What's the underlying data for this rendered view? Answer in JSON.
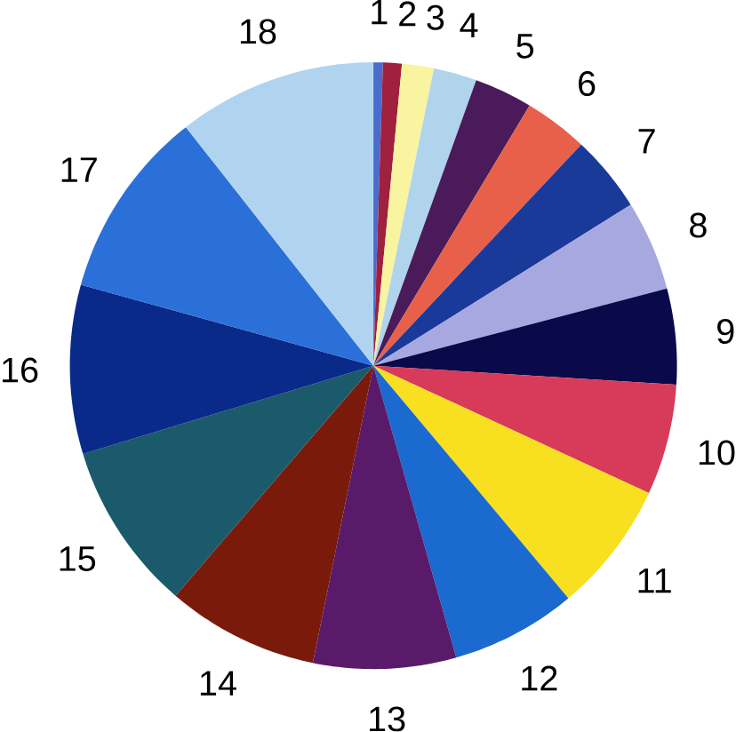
{
  "chart_data": {
    "type": "pie",
    "categories": [
      "1",
      "2",
      "3",
      "4",
      "5",
      "6",
      "7",
      "8",
      "9",
      "10",
      "11",
      "12",
      "13",
      "14",
      "15",
      "16",
      "17",
      "18"
    ],
    "values": [
      0.5,
      1.0,
      1.7,
      2.3,
      3.1,
      3.4,
      4.1,
      4.8,
      5.1,
      5.9,
      7.0,
      6.7,
      7.6,
      8.1,
      9.0,
      9.0,
      10.1,
      10.6
    ],
    "colors": [
      "#4a6ccc",
      "#a02040",
      "#f8f4a0",
      "#b0d4ec",
      "#4a1a5a",
      "#e8604a",
      "#1a3a9a",
      "#a8a8e0",
      "#0a0a4a",
      "#d83a5a",
      "#f8e020",
      "#1a6ad0",
      "#5a1a6a",
      "#7a1a0a",
      "#1a5a6a",
      "#0a2a8a",
      "#2a70d8",
      "#b0d4f0"
    ]
  }
}
